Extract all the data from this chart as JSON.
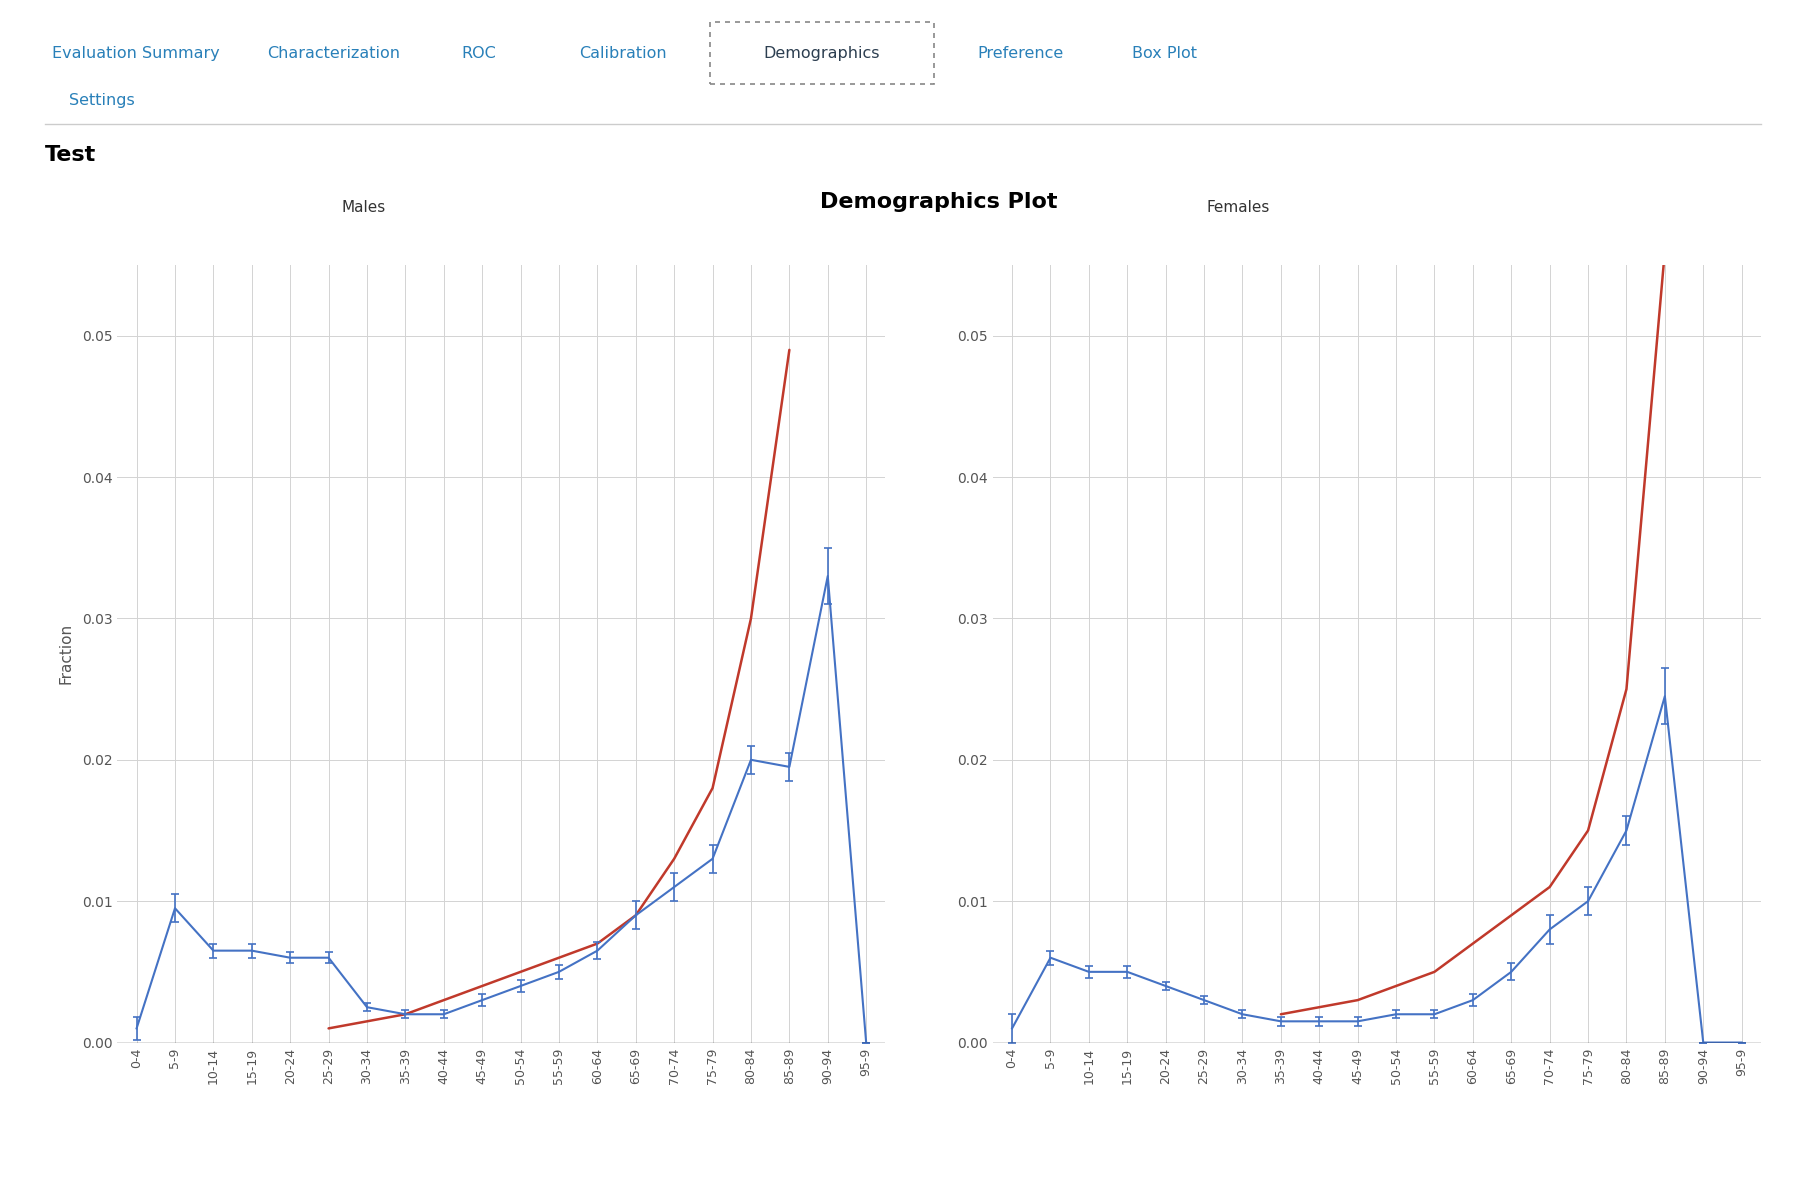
{
  "title": "Demographics Plot",
  "ylabel": "Fraction",
  "background_color": "#ffffff",
  "plot_bg_color": "#ffffff",
  "grid_color": "#d3d3d3",
  "age_groups": [
    "0-4",
    "5-9",
    "10-14",
    "15-19",
    "20-24",
    "25-29",
    "30-34",
    "35-39",
    "40-44",
    "45-49",
    "50-54",
    "55-59",
    "60-64",
    "65-69",
    "70-74",
    "75-79",
    "80-84",
    "85-89",
    "90-94",
    "95-9"
  ],
  "males_blue": [
    0.001,
    0.0095,
    0.0065,
    0.0065,
    0.006,
    0.006,
    0.0025,
    0.002,
    0.002,
    0.003,
    0.004,
    0.005,
    0.0065,
    0.009,
    0.011,
    0.013,
    0.02,
    0.0195,
    0.033,
    0.0
  ],
  "males_blue_err": [
    0.0008,
    0.001,
    0.0005,
    0.0005,
    0.0004,
    0.0004,
    0.0003,
    0.0003,
    0.0003,
    0.0004,
    0.0004,
    0.0005,
    0.0006,
    0.001,
    0.001,
    0.001,
    0.001,
    0.001,
    0.002,
    0.0
  ],
  "males_red": [
    0.0,
    0.0,
    0.0,
    0.0,
    0.0,
    0.001,
    0.0015,
    0.002,
    0.003,
    0.004,
    0.005,
    0.006,
    0.007,
    0.009,
    0.013,
    0.018,
    0.03,
    0.049,
    0.0,
    0.0
  ],
  "females_blue": [
    0.001,
    0.006,
    0.005,
    0.005,
    0.004,
    0.003,
    0.002,
    0.0015,
    0.0015,
    0.0015,
    0.002,
    0.002,
    0.003,
    0.005,
    0.008,
    0.01,
    0.015,
    0.0245,
    0.0,
    0.0
  ],
  "females_blue_err": [
    0.001,
    0.0005,
    0.0004,
    0.0004,
    0.0003,
    0.0003,
    0.0003,
    0.0003,
    0.0003,
    0.0003,
    0.0003,
    0.0003,
    0.0004,
    0.0006,
    0.001,
    0.001,
    0.001,
    0.002,
    0.0,
    0.0
  ],
  "females_red": [
    0.0,
    0.0,
    0.0,
    0.0,
    0.0,
    0.0,
    0.0,
    0.002,
    0.0025,
    0.003,
    0.004,
    0.005,
    0.007,
    0.009,
    0.011,
    0.015,
    0.025,
    0.056,
    0.0,
    0.0
  ],
  "ylim": [
    0,
    0.055
  ],
  "yticks": [
    0,
    0.01,
    0.02,
    0.03,
    0.04,
    0.05
  ],
  "line_blue": "#4472c4",
  "line_red": "#c0392b",
  "males_label": "Males",
  "females_label": "Females",
  "nav_items": [
    "Evaluation Summary",
    "Characterization",
    "ROC",
    "Calibration",
    "Demographics",
    "Preference",
    "Box Plot"
  ],
  "nav_active": "Demographics",
  "section_title": "Test",
  "settings_label": "Settings",
  "nav_color": "#2980b9",
  "nav_active_color": "#2c3e50",
  "separator_color": "#cccccc",
  "tick_label_color": "#555555"
}
